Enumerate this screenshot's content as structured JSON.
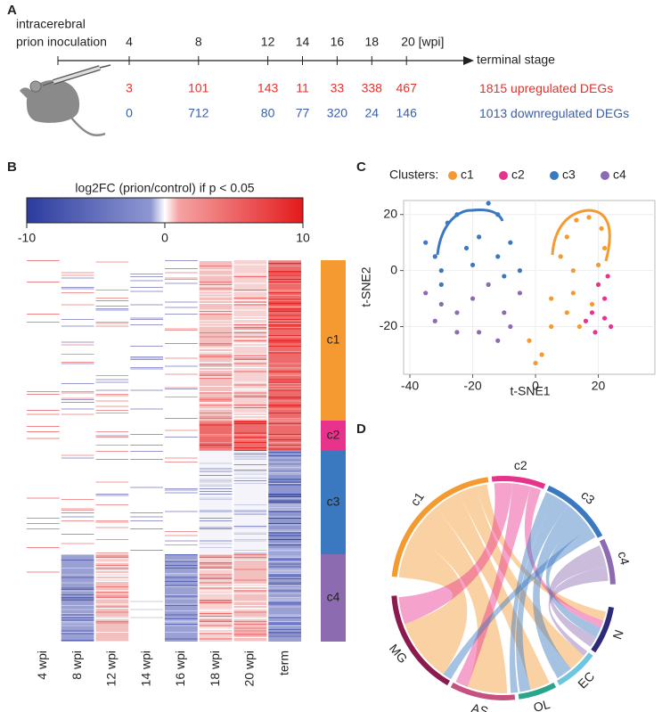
{
  "panel_labels": [
    "A",
    "B",
    "C",
    "D"
  ],
  "timeline": {
    "title_lines": [
      "intracerebral",
      "prion inoculation"
    ],
    "ticks": [
      4,
      8,
      12,
      14,
      16,
      18,
      {
        "value": 20,
        "label": "20 [wpi]"
      }
    ],
    "end_label": "terminal stage",
    "up": {
      "color": "#e8302a",
      "values": [
        3,
        101,
        143,
        11,
        33,
        338,
        467
      ],
      "total": 1815,
      "label": "upregulated DEGs"
    },
    "down": {
      "color": "#3a5fa8",
      "values": [
        0,
        712,
        80,
        77,
        320,
        24,
        146
      ],
      "total": 1013,
      "label": "downregulated DEGs"
    }
  },
  "heatmap": {
    "colorbar_title": "log2FC (prion/control) if p < 0.05",
    "colorbar_lim": [
      -10,
      10
    ],
    "colorbar_ticks": [
      -10,
      0,
      10
    ],
    "columns": [
      "4 wpi",
      "8 wpi",
      "12 wpi",
      "14 wpi",
      "16 wpi",
      "18 wpi",
      "20 wpi",
      "term"
    ],
    "clusters": [
      {
        "name": "c1",
        "color": "#f59a30"
      },
      {
        "name": "c2",
        "color": "#e8338d"
      },
      {
        "name": "c3",
        "color": "#3a78c0"
      },
      {
        "name": "c4",
        "color": "#8c6bb1"
      }
    ]
  },
  "chart_data": {
    "type": "scatter",
    "legend_title": "Clusters:",
    "x_label": "t-SNE1",
    "y_label": "t-SNE2",
    "xlim": [
      -42,
      38
    ],
    "ylim": [
      -37,
      25
    ],
    "xticks": [
      -40,
      -20,
      0,
      20
    ],
    "yticks": [
      20,
      0,
      -20
    ],
    "grid": true,
    "series": [
      {
        "name": "c1",
        "color": "#f59a30",
        "x": [
          8,
          10,
          13,
          17,
          21,
          22,
          12,
          20,
          5,
          10,
          14,
          5,
          -2,
          2,
          0,
          18,
          12
        ],
        "y": [
          5,
          12,
          18,
          19,
          15,
          8,
          0,
          2,
          -10,
          -15,
          -20,
          -20,
          -25,
          -30,
          -33,
          -12,
          -8
        ]
      },
      {
        "name": "c2",
        "color": "#e8338d",
        "x": [
          20,
          22,
          18,
          22,
          24,
          16,
          19,
          23
        ],
        "y": [
          -5,
          -10,
          -15,
          -17,
          -20,
          -18,
          -22,
          -2
        ]
      },
      {
        "name": "c3",
        "color": "#3a78c0",
        "x": [
          -35,
          -32,
          -28,
          -25,
          -30,
          -22,
          -18,
          -12,
          -12,
          -8,
          -5,
          -10,
          -20,
          -15,
          -30
        ],
        "y": [
          10,
          5,
          17,
          20,
          0,
          8,
          12,
          20,
          5,
          10,
          0,
          -2,
          2,
          24,
          -5
        ]
      },
      {
        "name": "c4",
        "color": "#8c6bb1",
        "x": [
          -35,
          -30,
          -25,
          -32,
          -20,
          -18,
          -12,
          -10,
          -5,
          -25,
          -8,
          -15
        ],
        "y": [
          -8,
          -12,
          -15,
          -18,
          -10,
          -22,
          -25,
          -15,
          -8,
          -22,
          -20,
          -5
        ]
      }
    ]
  },
  "chord": {
    "clusters": [
      "c1",
      "c2",
      "c3",
      "c4"
    ],
    "cell_types": [
      "N",
      "EC",
      "OL",
      "AS",
      "MG"
    ]
  }
}
